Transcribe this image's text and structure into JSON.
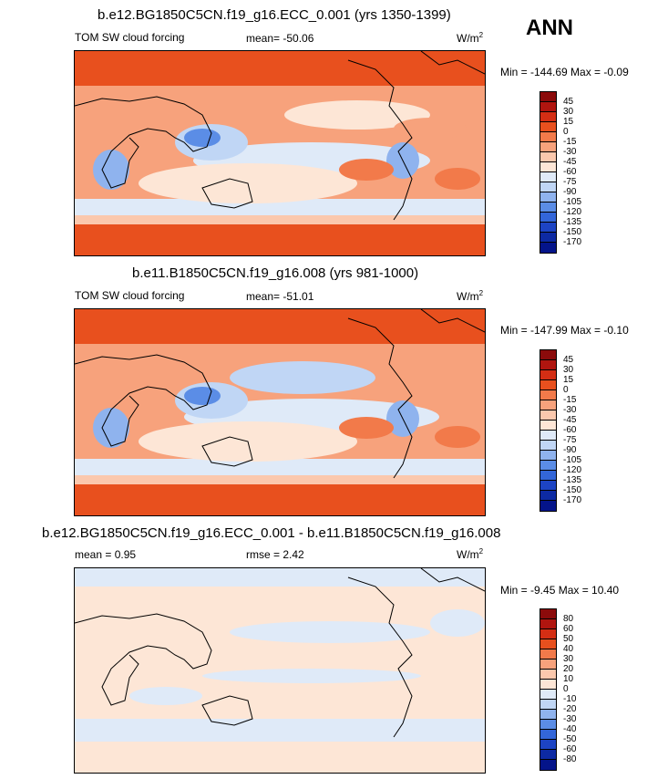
{
  "season": "ANN",
  "units": "W/m",
  "units_sup": "2",
  "panels": [
    {
      "title": "b.e12.BG1850C5CN.f19_g16.ECC_0.001 (yrs 1350-1399)",
      "left_label": "TOM SW cloud forcing",
      "center_label": "mean= -50.06",
      "minmax": "Min = -144.69 Max =  -0.09",
      "colorbar": [
        "45",
        "30",
        "15",
        "0",
        "-15",
        "-30",
        "-45",
        "-60",
        "-75",
        "-90",
        "-105",
        "-120",
        "-135",
        "-150",
        "-170"
      ]
    },
    {
      "title": "b.e11.B1850C5CN.f19_g16.008 (yrs 981-1000)",
      "left_label": "TOM SW cloud forcing",
      "center_label": "mean= -51.01",
      "minmax": "Min = -147.99 Max =  -0.10",
      "colorbar": [
        "45",
        "30",
        "15",
        "0",
        "-15",
        "-30",
        "-45",
        "-60",
        "-75",
        "-90",
        "-105",
        "-120",
        "-135",
        "-150",
        "-170"
      ]
    },
    {
      "title": "b.e12.BG1850C5CN.f19_g16.ECC_0.001 - b.e11.B1850C5CN.f19_g16.008",
      "left_label": "mean =   0.95",
      "center_label": "rmse =   2.42",
      "minmax": "Min =  -9.45 Max =  10.40",
      "colorbar": [
        "80",
        "60",
        "50",
        "40",
        "30",
        "20",
        "10",
        "0",
        "-10",
        "-20",
        "-30",
        "-40",
        "-50",
        "-60",
        "-80"
      ]
    }
  ],
  "colors": {
    "abs_scale": [
      "#8b0b0b",
      "#b0150f",
      "#d42e14",
      "#e8501e",
      "#f27a4a",
      "#f7a27c",
      "#fbc8ad",
      "#fde6d6",
      "#dfeaf8",
      "#c0d6f5",
      "#8fb3ee",
      "#5b8de6",
      "#3366d9",
      "#1d44c4",
      "#0d2aa3",
      "#04148a"
    ],
    "diff_scale": [
      "#8b0b0b",
      "#b0150f",
      "#d42e14",
      "#e8501e",
      "#f27a4a",
      "#f7a27c",
      "#fbc8ad",
      "#fde6d6",
      "#dfeaf8",
      "#c0d6f5",
      "#8fb3ee",
      "#5b8de6",
      "#3366d9",
      "#1d44c4",
      "#0d2aa3",
      "#04148a"
    ]
  },
  "chart_data": [
    {
      "type": "heatmap",
      "title": "b.e12.BG1850C5CN.f19_g16.ECC_0.001 (yrs 1350-1399)",
      "variable": "TOM SW cloud forcing",
      "mean": -50.06,
      "min": -144.69,
      "max": -0.09,
      "units": "W/m2",
      "contour_levels": [
        45,
        30,
        15,
        0,
        -15,
        -30,
        -45,
        -60,
        -75,
        -90,
        -105,
        -120,
        -135,
        -150,
        -170
      ],
      "projection": "cylindrical equidistant, Pacific-centered"
    },
    {
      "type": "heatmap",
      "title": "b.e11.B1850C5CN.f19_g16.008 (yrs 981-1000)",
      "variable": "TOM SW cloud forcing",
      "mean": -51.01,
      "min": -147.99,
      "max": -0.1,
      "units": "W/m2",
      "contour_levels": [
        45,
        30,
        15,
        0,
        -15,
        -30,
        -45,
        -60,
        -75,
        -90,
        -105,
        -120,
        -135,
        -150,
        -170
      ],
      "projection": "cylindrical equidistant, Pacific-centered"
    },
    {
      "type": "heatmap",
      "title": "b.e12.BG1850C5CN.f19_g16.ECC_0.001 - b.e11.B1850C5CN.f19_g16.008",
      "variable": "difference",
      "mean": 0.95,
      "rmse": 2.42,
      "min": -9.45,
      "max": 10.4,
      "units": "W/m2",
      "contour_levels": [
        80,
        60,
        50,
        40,
        30,
        20,
        10,
        0,
        -10,
        -20,
        -30,
        -40,
        -50,
        -60,
        -80
      ],
      "projection": "cylindrical equidistant, Pacific-centered"
    }
  ]
}
